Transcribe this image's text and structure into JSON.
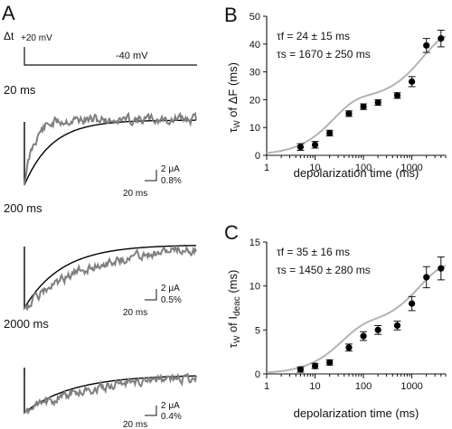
{
  "colors": {
    "trace_gray": "#7f7f7f",
    "trace_black": "#000000",
    "fit_gray": "#b3b3b3",
    "axis": "#111111"
  },
  "panel_a": {
    "letter": "A",
    "protocol": {
      "dt_label": "Δt",
      "hold_label": "+20 mV",
      "step_label": "-40 mV"
    },
    "traces": [
      {
        "label": "20 ms",
        "scale_current": "2 μA",
        "scale_percent": "0.8%",
        "scale_time": "20 ms"
      },
      {
        "label": "200 ms",
        "scale_current": "2 μA",
        "scale_percent": "0.5%",
        "scale_time": "20 ms"
      },
      {
        "label": "2000 ms",
        "scale_current": "2 μA",
        "scale_percent": "0.4%",
        "scale_time": "20 ms"
      }
    ]
  },
  "chart_data": [
    {
      "panel": "B",
      "type": "scatter",
      "x_scale": "log",
      "xlim": [
        1,
        5000
      ],
      "ylim": [
        0,
        50
      ],
      "xlabel": "depolarization time (ms)",
      "ylabel_main": "τ",
      "ylabel_sub": "W",
      "ylabel_rest": " of ΔF (ms)",
      "xticks": [
        "1",
        "10",
        "100",
        "1000"
      ],
      "yticks": [
        0,
        10,
        20,
        30,
        40,
        50
      ],
      "annotations": [
        "τf = 24 ± 15 ms",
        "τs = 1670 ± 250 ms"
      ],
      "points": [
        {
          "x": 5,
          "y": 3,
          "err": 1.2
        },
        {
          "x": 10,
          "y": 3.8,
          "err": 1.2
        },
        {
          "x": 20,
          "y": 8,
          "err": 1
        },
        {
          "x": 50,
          "y": 15,
          "err": 1
        },
        {
          "x": 100,
          "y": 17.5,
          "err": 1
        },
        {
          "x": 200,
          "y": 19,
          "err": 1
        },
        {
          "x": 500,
          "y": 21.5,
          "err": 1
        },
        {
          "x": 1000,
          "y": 26.5,
          "err": 1.8
        },
        {
          "x": 2000,
          "y": 39.5,
          "err": 2.5
        },
        {
          "x": 4000,
          "y": 42,
          "err": 3
        }
      ],
      "fit": {
        "tau_fast_ms": 24,
        "tau_slow_ms": 1670,
        "amp_fast": 20,
        "amp_slow": 24
      }
    },
    {
      "panel": "C",
      "type": "scatter",
      "x_scale": "log",
      "xlim": [
        1,
        5000
      ],
      "ylim": [
        0,
        15
      ],
      "xlabel": "depolarization time (ms)",
      "ylabel_main": "τ",
      "ylabel_sub": "W",
      "ylabel_rest": " of I",
      "ylabel_sub2": "deac",
      "ylabel_tail": " (ms)",
      "xticks": [
        "1",
        "10",
        "100",
        "1000"
      ],
      "yticks": [
        0,
        5,
        10,
        15
      ],
      "annotations": [
        "τf = 35 ± 16 ms",
        "τs = 1450 ± 280 ms"
      ],
      "points": [
        {
          "x": 5,
          "y": 0.5,
          "err": 0.3
        },
        {
          "x": 10,
          "y": 0.9,
          "err": 0.3
        },
        {
          "x": 20,
          "y": 1.3,
          "err": 0.3
        },
        {
          "x": 50,
          "y": 3,
          "err": 0.4
        },
        {
          "x": 100,
          "y": 4.3,
          "err": 0.5
        },
        {
          "x": 200,
          "y": 5,
          "err": 0.5
        },
        {
          "x": 500,
          "y": 5.5,
          "err": 0.5
        },
        {
          "x": 1000,
          "y": 8,
          "err": 0.8
        },
        {
          "x": 2000,
          "y": 11,
          "err": 1.2
        },
        {
          "x": 4000,
          "y": 12,
          "err": 1.3
        }
      ],
      "fit": {
        "tau_fast_ms": 35,
        "tau_slow_ms": 1450,
        "amp_fast": 5.5,
        "amp_slow": 7
      }
    }
  ]
}
